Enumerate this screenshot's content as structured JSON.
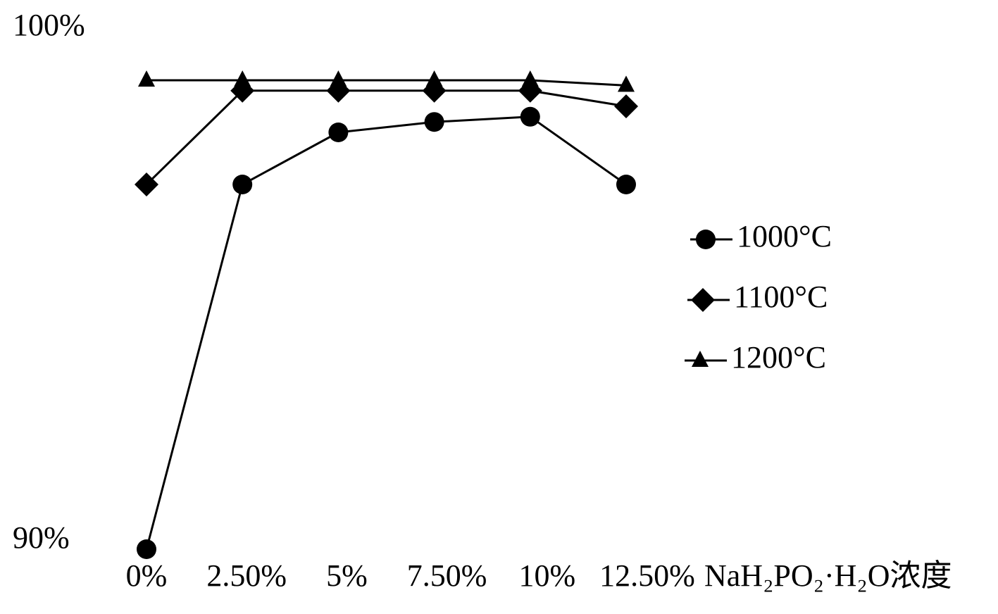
{
  "chart_data": {
    "type": "line",
    "x_label": "NaH₂PO₂·H₂O浓度",
    "categories": [
      "0%",
      "2.50%",
      "5%",
      "7.50%",
      "10%",
      "12.50%"
    ],
    "series": [
      {
        "name": "1000°C",
        "color": "#000000",
        "marker": "circle",
        "values": [
          90,
          97,
          98,
          98.2,
          98.3,
          97
        ]
      },
      {
        "name": "1100°C",
        "color": "#000000",
        "marker": "diamond",
        "values": [
          97,
          98.8,
          98.8,
          98.8,
          98.8,
          98.5
        ]
      },
      {
        "name": "1200°C",
        "color": "#000000",
        "marker": "triangle",
        "values": [
          99,
          99,
          99,
          99,
          99,
          98.9
        ]
      }
    ],
    "ylim": [
      90,
      100
    ],
    "yticks": [
      {
        "value": 90,
        "label": "90%"
      },
      {
        "value": 100,
        "label": "100%"
      }
    ],
    "legend": "right",
    "grid": false
  }
}
